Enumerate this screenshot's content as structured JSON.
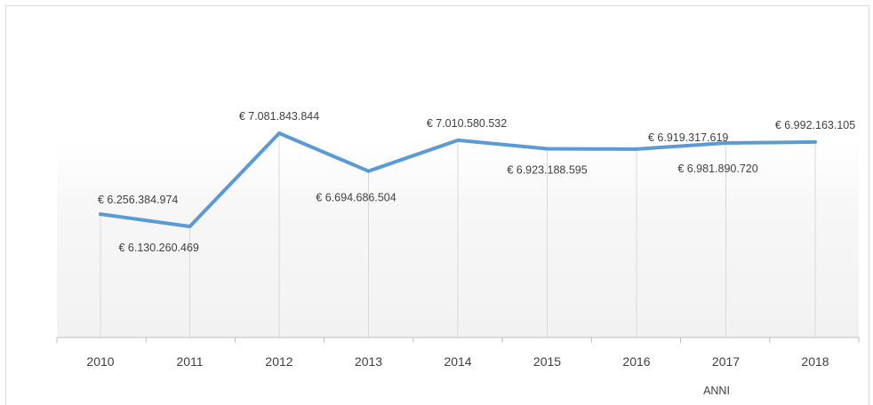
{
  "chart_data": {
    "type": "line",
    "title": "",
    "xlabel": "ANNI",
    "ylabel": "",
    "categories": [
      "2010",
      "2011",
      "2012",
      "2013",
      "2014",
      "2015",
      "2016",
      "2017",
      "2018"
    ],
    "series": [
      {
        "values": [
          6256384974,
          6130260469,
          7081843844,
          6694686504,
          7010580532,
          6923188595,
          6919317619,
          6981890720,
          6992163105
        ],
        "labels": [
          "€ 6.256.384.974",
          "€ 6.130.260.469",
          "€ 7.081.843.844",
          "€ 6.694.686.504",
          "€ 7.010.580.532",
          "€ 6.923.188.595",
          "€ 6.919.317.619",
          "€ 6.981.890.720",
          "€ 6.992.163.105"
        ],
        "color": "#5b9bd5"
      }
    ],
    "grid": false,
    "legend": "none"
  }
}
